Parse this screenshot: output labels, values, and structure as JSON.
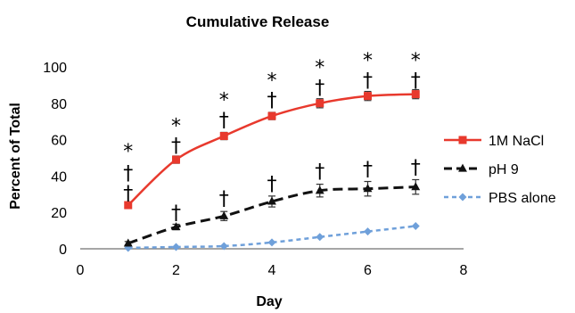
{
  "chart_data": {
    "type": "line",
    "title": "Cumulative Release",
    "xlabel": "Day",
    "ylabel": "Percent of Total",
    "xlim": [
      0,
      8
    ],
    "ylim": [
      0,
      100
    ],
    "x_ticks": [
      "0",
      "2",
      "4",
      "6",
      "8"
    ],
    "y_ticks": [
      "0",
      "20",
      "40",
      "60",
      "80",
      "100"
    ],
    "grid": false,
    "legend_position": "right",
    "series": [
      {
        "name": "1M NaCl",
        "color": "#e8392d",
        "marker": "square",
        "line_style": "solid",
        "x": [
          1,
          2,
          3,
          4,
          5,
          6,
          7
        ],
        "y": [
          24,
          49,
          62,
          73,
          80,
          84,
          85
        ],
        "error": [
          1.5,
          2,
          2,
          2,
          2.5,
          2.5,
          2.5
        ]
      },
      {
        "name": "pH 9",
        "color": "#111111",
        "marker": "triangle",
        "line_style": "dashed",
        "x": [
          1,
          2,
          3,
          4,
          5,
          6,
          7
        ],
        "y": [
          3,
          12,
          18,
          26,
          32,
          33,
          34
        ],
        "error": [
          1,
          1.5,
          2.5,
          3,
          3.5,
          4,
          4
        ]
      },
      {
        "name": "PBS alone",
        "color": "#6fa0da",
        "marker": "diamond",
        "line_style": "dotted",
        "x": [
          1,
          2,
          3,
          4,
          5,
          6,
          7
        ],
        "y": [
          0.5,
          1,
          1.5,
          3.5,
          6.5,
          9.5,
          12.5
        ],
        "error": [
          0,
          0,
          0,
          0,
          0,
          0,
          0
        ]
      }
    ],
    "annotations": [
      {
        "x": 1,
        "y": 31,
        "text": "†"
      },
      {
        "x": 1,
        "y": 42,
        "text": "†"
      },
      {
        "x": 1,
        "y": 54,
        "text": "*"
      },
      {
        "x": 2,
        "y": 20,
        "text": "†"
      },
      {
        "x": 2,
        "y": 57,
        "text": "†"
      },
      {
        "x": 2,
        "y": 68,
        "text": "*"
      },
      {
        "x": 3,
        "y": 28,
        "text": "†"
      },
      {
        "x": 3,
        "y": 71,
        "text": "†"
      },
      {
        "x": 3,
        "y": 82,
        "text": "*"
      },
      {
        "x": 4,
        "y": 36,
        "text": "†"
      },
      {
        "x": 4,
        "y": 82,
        "text": "†"
      },
      {
        "x": 4,
        "y": 93,
        "text": "*"
      },
      {
        "x": 5,
        "y": 43,
        "text": "†"
      },
      {
        "x": 5,
        "y": 89,
        "text": "†"
      },
      {
        "x": 5,
        "y": 100,
        "text": "*"
      },
      {
        "x": 6,
        "y": 44,
        "text": "†"
      },
      {
        "x": 6,
        "y": 93,
        "text": "†"
      },
      {
        "x": 6,
        "y": 104,
        "text": "*"
      },
      {
        "x": 7,
        "y": 45,
        "text": "†"
      },
      {
        "x": 7,
        "y": 93,
        "text": "†"
      },
      {
        "x": 7,
        "y": 104,
        "text": "*"
      }
    ]
  }
}
